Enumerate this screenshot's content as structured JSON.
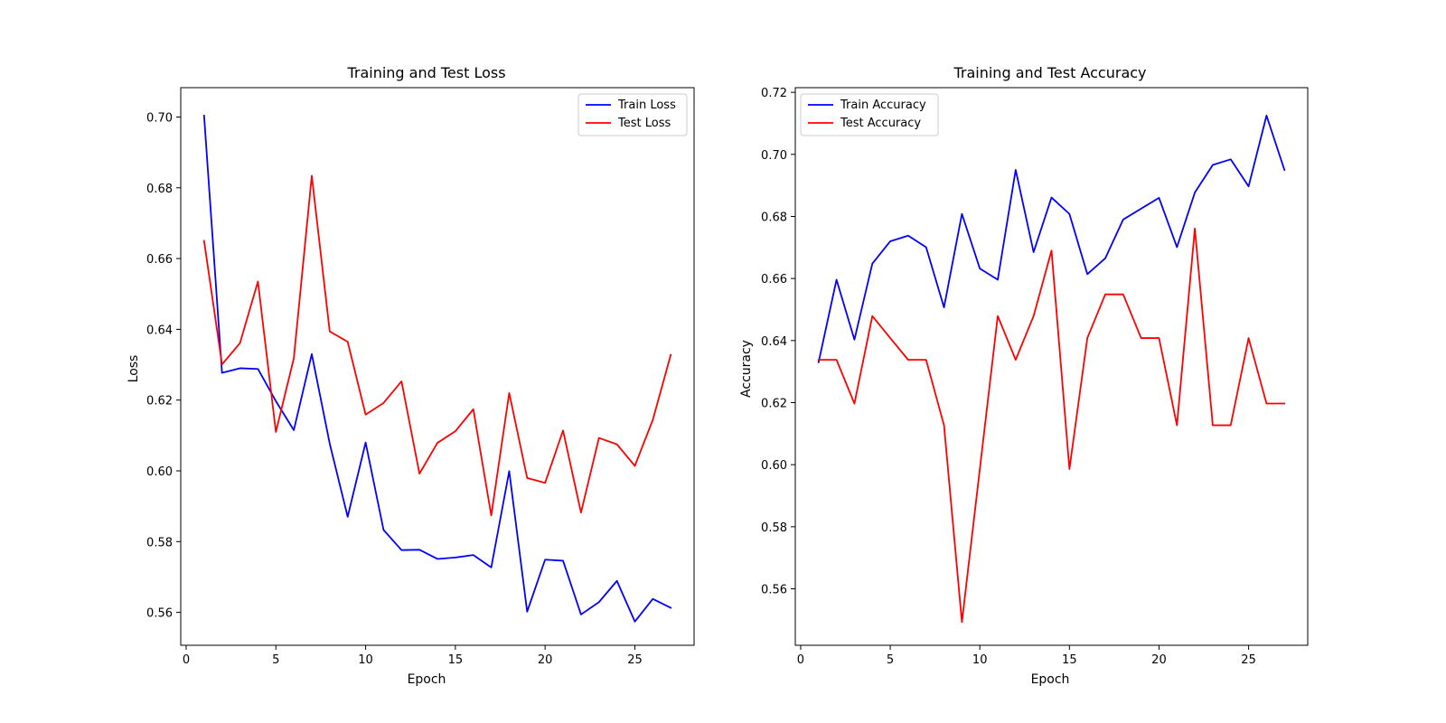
{
  "figure": {
    "background": "#ffffff"
  },
  "chart_data": [
    {
      "type": "line",
      "title": "Training and Test Loss",
      "xlabel": "Epoch",
      "ylabel": "Loss",
      "xlim": [
        -0.3,
        28.3
      ],
      "ylim": [
        0.5507,
        0.7083
      ],
      "xticks": [
        0,
        5,
        10,
        15,
        20,
        25
      ],
      "xtick_labels": [
        "0",
        "5",
        "10",
        "15",
        "20",
        "25"
      ],
      "yticks": [
        0.56,
        0.58,
        0.6,
        0.62,
        0.64,
        0.66,
        0.68,
        0.7
      ],
      "ytick_labels": [
        "0.56",
        "0.58",
        "0.60",
        "0.62",
        "0.64",
        "0.66",
        "0.68",
        "0.70"
      ],
      "grid": false,
      "legend_position": "upper right",
      "x": [
        1,
        2,
        3,
        4,
        5,
        6,
        7,
        8,
        9,
        10,
        11,
        12,
        13,
        14,
        15,
        16,
        17,
        18,
        19,
        20,
        21,
        22,
        23,
        24,
        25,
        26,
        27
      ],
      "series": [
        {
          "name": "Train Loss",
          "color": "#0000ff",
          "values": [
            0.7004,
            0.6277,
            0.629,
            0.6288,
            0.6197,
            0.6115,
            0.633,
            0.6077,
            0.587,
            0.608,
            0.5833,
            0.5776,
            0.5777,
            0.5751,
            0.5755,
            0.5762,
            0.5727,
            0.5999,
            0.5602,
            0.5749,
            0.5746,
            0.5594,
            0.5629,
            0.5689,
            0.5574,
            0.5638,
            0.5613
          ]
        },
        {
          "name": "Test Loss",
          "color": "#ff0000",
          "values": [
            0.665,
            0.6301,
            0.6361,
            0.6535,
            0.611,
            0.6318,
            0.6834,
            0.6394,
            0.6365,
            0.6159,
            0.6192,
            0.6253,
            0.5992,
            0.6079,
            0.6112,
            0.6174,
            0.5874,
            0.622,
            0.598,
            0.5966,
            0.6114,
            0.5882,
            0.6093,
            0.6075,
            0.6014,
            0.6144,
            0.6328
          ]
        }
      ]
    },
    {
      "type": "line",
      "title": "Training and Test Accuracy",
      "xlabel": "Epoch",
      "ylabel": "Accuracy",
      "xlim": [
        -0.3,
        28.3
      ],
      "ylim": [
        0.5418,
        0.7215
      ],
      "xticks": [
        0,
        5,
        10,
        15,
        20,
        25
      ],
      "xtick_labels": [
        "0",
        "5",
        "10",
        "15",
        "20",
        "25"
      ],
      "yticks": [
        0.56,
        0.58,
        0.6,
        0.62,
        0.64,
        0.66,
        0.68,
        0.7,
        0.72
      ],
      "ytick_labels": [
        "0.56",
        "0.58",
        "0.60",
        "0.62",
        "0.64",
        "0.66",
        "0.68",
        "0.70",
        "0.72"
      ],
      "grid": false,
      "legend_position": "upper left",
      "x": [
        1,
        2,
        3,
        4,
        5,
        6,
        7,
        8,
        9,
        10,
        11,
        12,
        13,
        14,
        15,
        16,
        17,
        18,
        19,
        20,
        21,
        22,
        23,
        24,
        25,
        26,
        27
      ],
      "series": [
        {
          "name": "Train Accuracy",
          "color": "#0000ff",
          "values": [
            0.633,
            0.6596,
            0.6403,
            0.6648,
            0.672,
            0.6738,
            0.6701,
            0.6507,
            0.6808,
            0.6632,
            0.6596,
            0.695,
            0.6685,
            0.6861,
            0.6808,
            0.6614,
            0.6665,
            0.679,
            0.6825,
            0.686,
            0.6701,
            0.6877,
            0.6966,
            0.6984,
            0.6897,
            0.7125,
            0.695
          ]
        },
        {
          "name": "Test Accuracy",
          "color": "#ff0000",
          "values": [
            0.6338,
            0.6338,
            0.6197,
            0.6479,
            0.6408,
            0.6338,
            0.6338,
            0.6127,
            0.5493,
            0.5986,
            0.6479,
            0.6338,
            0.6479,
            0.669,
            0.5986,
            0.6408,
            0.6549,
            0.6549,
            0.6408,
            0.6408,
            0.6127,
            0.6761,
            0.6127,
            0.6127,
            0.6408,
            0.6197,
            0.6197
          ]
        }
      ]
    }
  ]
}
